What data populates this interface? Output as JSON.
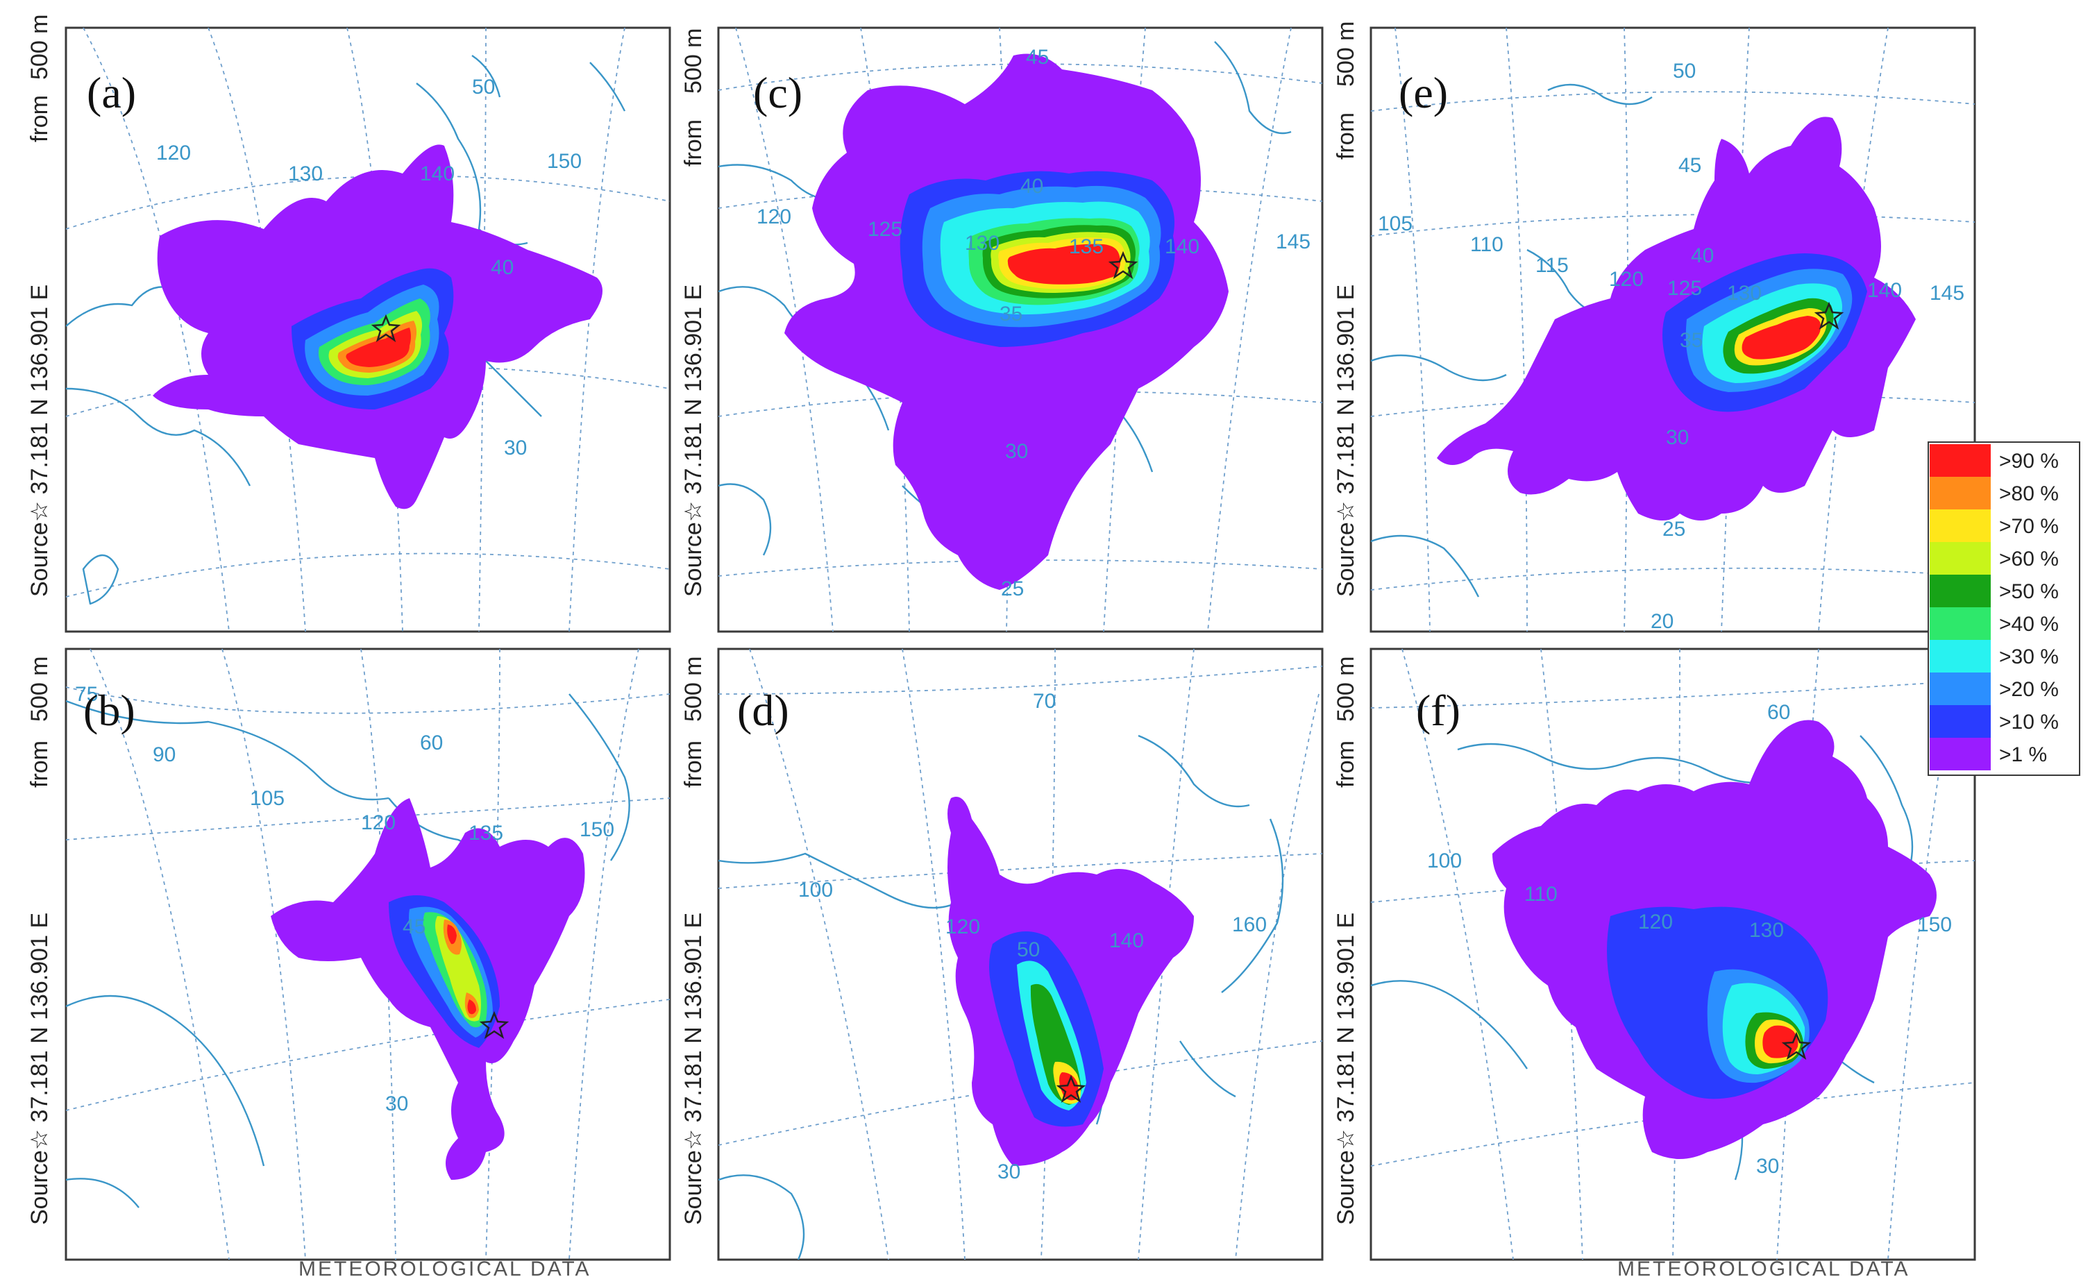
{
  "side_label": {
    "height": "500 m",
    "from": "from",
    "coords": "Source☆ 37.181 N 136.901 E"
  },
  "palette": {
    "gt90": "#ff1a1a",
    "gt80": "#ff8c1a",
    "gt70": "#ffe61a",
    "gt60": "#c8f51a",
    "gt50": "#17a317",
    "gt40": "#2ee86b",
    "gt30": "#28f2f0",
    "gt20": "#2b8fff",
    "gt10": "#2a3cff",
    "gt1": "#9a1cff",
    "coast": "#3a96c8",
    "grid": "#6f9fcc"
  },
  "legend": {
    "items": [
      ">90 %",
      ">80 %",
      ">70 %",
      ">60 %",
      ">50 %",
      ">40 %",
      ">30 %",
      ">20 %",
      ">10 %",
      ">1 %"
    ]
  },
  "panels": [
    {
      "label": "(a)",
      "source": {
        "lat": 37.181,
        "lon": 136.901
      },
      "grid_labels": [
        "120",
        "130",
        "140",
        "150",
        "50",
        "40",
        "30"
      ]
    },
    {
      "label": "(b)",
      "source": {
        "lat": 37.181,
        "lon": 136.901
      },
      "grid_labels": [
        "90",
        "105",
        "120",
        "135",
        "150",
        "60",
        "45",
        "30",
        "75"
      ]
    },
    {
      "label": "(c)",
      "source": {
        "lat": 37.181,
        "lon": 136.901
      },
      "grid_labels": [
        "45",
        "40",
        "120",
        "125",
        "130",
        "135",
        "140",
        "145",
        "35",
        "30",
        "25"
      ]
    },
    {
      "label": "(d)",
      "source": {
        "lat": 37.181,
        "lon": 136.901
      },
      "grid_labels": [
        "70",
        "100",
        "120",
        "140",
        "160",
        "50",
        "30"
      ]
    },
    {
      "label": "(e)",
      "source": {
        "lat": 37.181,
        "lon": 136.901
      },
      "grid_labels": [
        "50",
        "45",
        "40",
        "105",
        "110",
        "115",
        "120",
        "125",
        "130",
        "140",
        "145",
        "35",
        "30",
        "25",
        "20"
      ]
    },
    {
      "label": "(f)",
      "source": {
        "lat": 37.181,
        "lon": 136.901
      },
      "grid_labels": [
        "60",
        "100",
        "110",
        "120",
        "130",
        "150",
        "30"
      ]
    }
  ],
  "footer": {
    "left": "METEOROLOGICAL DATA",
    "right": "METEOROLOGICAL DATA"
  }
}
